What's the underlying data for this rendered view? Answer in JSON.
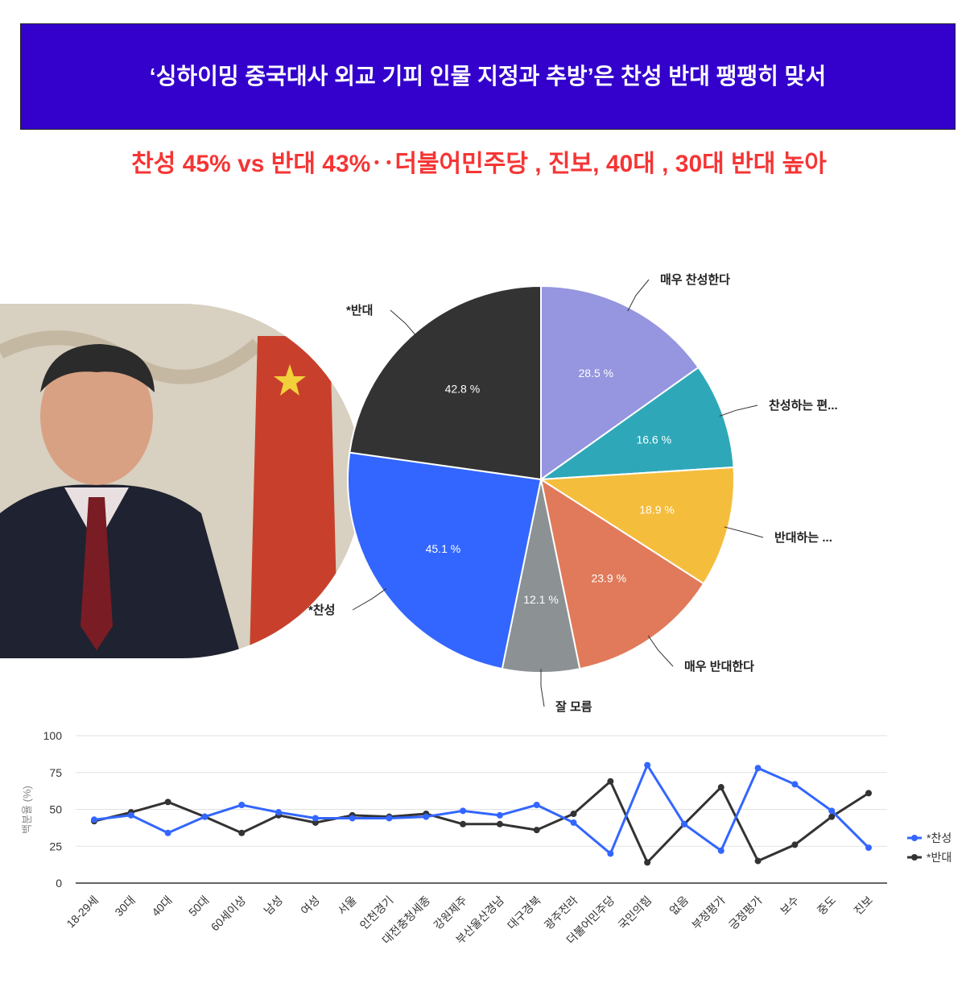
{
  "header": {
    "title": "‘싱하이밍 중국대사 외교 기피 인물 지정과 추방’은 찬성 반대  팽팽히 맞서",
    "subtitle": "찬성 45% vs 반대 43%‥더불어민주당 , 진보, 40대 , 30대 반대 높아"
  },
  "photo": {
    "description_icon": "person-photo"
  },
  "chart_data": [
    {
      "type": "pie",
      "slices": [
        {
          "label": "매우 찬성한다",
          "value": 28.5,
          "display": "28.5 %",
          "color": "#9595e0"
        },
        {
          "label": "찬성하는 편...",
          "value": 16.6,
          "display": "16.6 %",
          "color": "#2ea8b8"
        },
        {
          "label": "반대하는 ...",
          "value": 18.9,
          "display": "18.9 %",
          "color": "#f5bd3c"
        },
        {
          "label": "매우 반대한다",
          "value": 23.9,
          "display": "23.9 %",
          "color": "#e07a5a"
        },
        {
          "label": "잘 모름",
          "value": 12.1,
          "display": "12.1 %",
          "color": "#8c9194"
        },
        {
          "label": "*찬성",
          "value": 45.1,
          "display": "45.1 %",
          "color": "#3366ff"
        },
        {
          "label": "*반대",
          "value": 42.8,
          "display": "42.8 %",
          "color": "#333333"
        }
      ]
    },
    {
      "type": "line",
      "ylabel": "백분율 (%)",
      "ylim": [
        0,
        100
      ],
      "yticks": [
        0,
        25,
        50,
        75,
        100
      ],
      "grid": true,
      "legend": "right",
      "categories": [
        "18-29세",
        "30대",
        "40대",
        "50대",
        "60세이상",
        "남성",
        "여성",
        "서울",
        "인천경기",
        "대전충청세종",
        "강원제주",
        "부산울산경남",
        "대구경북",
        "광주전라",
        "더불어민주당",
        "국민의힘",
        "없음",
        "부정평가",
        "긍정평가",
        "보수",
        "중도",
        "진보"
      ],
      "series": [
        {
          "name": "*찬성",
          "color": "#3366ff",
          "values": [
            43,
            46,
            34,
            45,
            53,
            48,
            44,
            44,
            44,
            45,
            49,
            46,
            53,
            41,
            20,
            80,
            40,
            22,
            78,
            67,
            49,
            24
          ]
        },
        {
          "name": "*반대",
          "color": "#333333",
          "values": [
            42,
            48,
            55,
            45,
            34,
            46,
            41,
            46,
            45,
            47,
            40,
            40,
            36,
            47,
            69,
            14,
            40,
            65,
            15,
            26,
            45,
            61
          ]
        }
      ]
    }
  ]
}
